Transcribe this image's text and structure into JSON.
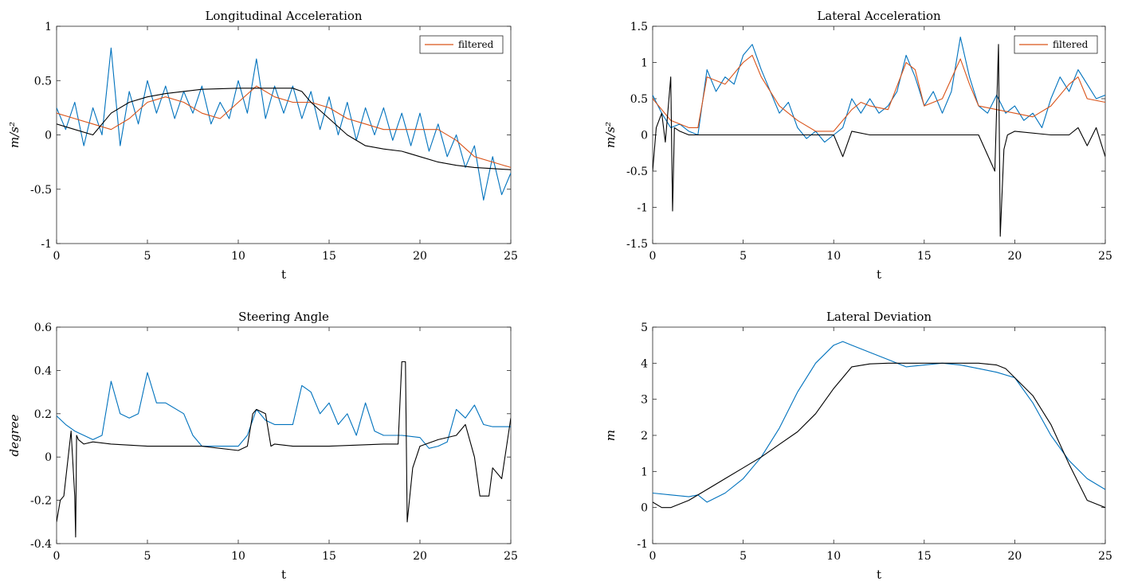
{
  "chart_data": [
    {
      "type": "line",
      "title": "Longitudinal Acceleration",
      "xlabel": "t",
      "ylabel": "m/s²",
      "xlim": [
        0,
        25
      ],
      "ylim": [
        -1,
        1
      ],
      "xticks": [
        0,
        5,
        10,
        15,
        20,
        25
      ],
      "yticks": [
        -1,
        -0.5,
        0,
        0.5,
        1
      ],
      "ytick_labels": [
        "-1",
        "-0.5",
        "0",
        "0.5",
        "1"
      ],
      "legend": {
        "entries": [
          "filtered"
        ],
        "placement": "top-right"
      },
      "series": [
        {
          "color": "#0072BD",
          "x": [
            0,
            0.5,
            1,
            1.5,
            2,
            2.5,
            3,
            3.5,
            4,
            4.5,
            5,
            5.5,
            6,
            6.5,
            7,
            7.5,
            8,
            8.5,
            9,
            9.5,
            10,
            10.5,
            11,
            11.5,
            12,
            12.5,
            13,
            13.5,
            14,
            14.5,
            15,
            15.5,
            16,
            16.5,
            17,
            17.5,
            18,
            18.5,
            19,
            19.5,
            20,
            20.5,
            21,
            21.5,
            22,
            22.5,
            23,
            23.5,
            24,
            24.5,
            25
          ],
          "y": [
            0.25,
            0.05,
            0.3,
            -0.1,
            0.25,
            0.0,
            0.8,
            -0.1,
            0.4,
            0.1,
            0.5,
            0.2,
            0.45,
            0.15,
            0.4,
            0.2,
            0.45,
            0.1,
            0.3,
            0.15,
            0.5,
            0.2,
            0.7,
            0.15,
            0.45,
            0.2,
            0.45,
            0.15,
            0.4,
            0.05,
            0.35,
            0.0,
            0.3,
            -0.05,
            0.25,
            0.0,
            0.25,
            -0.05,
            0.2,
            -0.1,
            0.2,
            -0.15,
            0.1,
            -0.2,
            0.0,
            -0.3,
            -0.1,
            -0.6,
            -0.2,
            -0.55,
            -0.35
          ]
        },
        {
          "name": "filtered",
          "color": "#D95319",
          "x": [
            0,
            1,
            2,
            3,
            4,
            5,
            6,
            7,
            8,
            9,
            10,
            11,
            12,
            13,
            14,
            15,
            16,
            17,
            18,
            19,
            20,
            21,
            22,
            23,
            24,
            25
          ],
          "y": [
            0.2,
            0.15,
            0.1,
            0.05,
            0.15,
            0.3,
            0.35,
            0.3,
            0.2,
            0.15,
            0.3,
            0.45,
            0.35,
            0.3,
            0.3,
            0.25,
            0.15,
            0.1,
            0.05,
            0.05,
            0.05,
            0.05,
            -0.05,
            -0.2,
            -0.25,
            -0.3
          ]
        },
        {
          "color": "#000000",
          "x": [
            0,
            1,
            2,
            3,
            4,
            5,
            6,
            8,
            10,
            12,
            13,
            13.5,
            14,
            15,
            16,
            17,
            18,
            19,
            20,
            21,
            22,
            23,
            24,
            25
          ],
          "y": [
            0.1,
            0.05,
            0.0,
            0.2,
            0.3,
            0.35,
            0.38,
            0.42,
            0.43,
            0.43,
            0.43,
            0.4,
            0.3,
            0.15,
            0.0,
            -0.1,
            -0.13,
            -0.15,
            -0.2,
            -0.25,
            -0.28,
            -0.3,
            -0.31,
            -0.32
          ]
        }
      ]
    },
    {
      "type": "line",
      "title": "Lateral Acceleration",
      "xlabel": "t",
      "ylabel": "m/s²",
      "xlim": [
        0,
        25
      ],
      "ylim": [
        -1.5,
        1.5
      ],
      "xticks": [
        0,
        5,
        10,
        15,
        20,
        25
      ],
      "yticks": [
        -1.5,
        -1,
        -0.5,
        0,
        0.5,
        1,
        1.5
      ],
      "ytick_labels": [
        "-1.5",
        "-1",
        "-0.5",
        "0",
        "0.5",
        "1",
        "1.5"
      ],
      "legend": {
        "entries": [
          "filtered"
        ],
        "placement": "top-right"
      },
      "series": [
        {
          "color": "#0072BD",
          "x": [
            0,
            0.5,
            1,
            1.5,
            2,
            2.5,
            3,
            3.5,
            4,
            4.5,
            5,
            5.5,
            6,
            6.5,
            7,
            7.5,
            8,
            8.5,
            9,
            9.5,
            10,
            10.5,
            11,
            11.5,
            12,
            12.5,
            13,
            13.5,
            14,
            14.5,
            15,
            15.5,
            16,
            16.5,
            17,
            17.5,
            18,
            18.5,
            19,
            19.5,
            20,
            20.5,
            21,
            21.5,
            22,
            22.5,
            23,
            23.5,
            24,
            24.5,
            25
          ],
          "y": [
            0.55,
            0.3,
            0.1,
            0.15,
            0.05,
            0.0,
            0.9,
            0.6,
            0.8,
            0.7,
            1.1,
            1.25,
            0.9,
            0.6,
            0.3,
            0.45,
            0.1,
            -0.05,
            0.05,
            -0.1,
            0.0,
            0.1,
            0.5,
            0.3,
            0.5,
            0.3,
            0.4,
            0.6,
            1.1,
            0.8,
            0.4,
            0.6,
            0.3,
            0.6,
            1.35,
            0.8,
            0.4,
            0.3,
            0.55,
            0.3,
            0.4,
            0.2,
            0.3,
            0.1,
            0.5,
            0.8,
            0.6,
            0.9,
            0.7,
            0.5,
            0.55
          ]
        },
        {
          "name": "filtered",
          "color": "#D95319",
          "x": [
            0,
            1,
            2,
            2.5,
            3,
            4,
            5,
            5.5,
            6,
            7,
            8,
            9,
            10,
            11,
            11.5,
            12,
            13,
            14,
            14.5,
            15,
            16,
            17,
            17.5,
            18,
            19,
            20,
            21,
            22,
            23,
            23.5,
            24,
            25
          ],
          "y": [
            0.5,
            0.2,
            0.1,
            0.1,
            0.8,
            0.7,
            1.0,
            1.1,
            0.8,
            0.4,
            0.2,
            0.05,
            0.05,
            0.35,
            0.45,
            0.4,
            0.35,
            1.0,
            0.9,
            0.4,
            0.5,
            1.05,
            0.7,
            0.4,
            0.35,
            0.3,
            0.25,
            0.4,
            0.7,
            0.8,
            0.5,
            0.45
          ]
        },
        {
          "color": "#000000",
          "x": [
            0,
            0.2,
            0.5,
            0.7,
            1,
            1.1,
            1.2,
            1.5,
            2,
            3,
            5,
            8,
            10,
            10.5,
            11,
            12,
            15,
            18,
            18.9,
            19.1,
            19.2,
            19.4,
            19.6,
            20,
            22,
            23,
            23.5,
            24,
            24.5,
            25
          ],
          "y": [
            -0.5,
            0.1,
            0.3,
            -0.1,
            0.8,
            -1.05,
            0.1,
            0.05,
            0.0,
            0.0,
            0.0,
            0.0,
            0.0,
            -0.3,
            0.05,
            0.0,
            0.0,
            0.0,
            -0.5,
            1.25,
            -1.4,
            -0.2,
            0.0,
            0.05,
            0.0,
            0.0,
            0.1,
            -0.15,
            0.1,
            -0.3
          ]
        }
      ]
    },
    {
      "type": "line",
      "title": "Steering Angle",
      "xlabel": "t",
      "ylabel": "degree",
      "xlim": [
        0,
        25
      ],
      "ylim": [
        -0.4,
        0.6
      ],
      "xticks": [
        0,
        5,
        10,
        15,
        20,
        25
      ],
      "yticks": [
        -0.4,
        -0.2,
        0,
        0.2,
        0.4,
        0.6
      ],
      "ytick_labels": [
        "-0.4",
        "-0.2",
        "0",
        "0.2",
        "0.4",
        "0.6"
      ],
      "series": [
        {
          "color": "#0072BD",
          "x": [
            0,
            0.5,
            1,
            1.5,
            2,
            2.5,
            3,
            3.5,
            4,
            4.5,
            5,
            5.5,
            6,
            7,
            7.5,
            8,
            9,
            10,
            10.5,
            11,
            11.5,
            12,
            13,
            13.5,
            14,
            14.5,
            15,
            15.5,
            16,
            16.5,
            17,
            17.5,
            18,
            19,
            20,
            20.5,
            21,
            21.5,
            22,
            22.5,
            23,
            23.5,
            24,
            24.5,
            25
          ],
          "y": [
            0.19,
            0.15,
            0.12,
            0.1,
            0.08,
            0.1,
            0.35,
            0.2,
            0.18,
            0.2,
            0.39,
            0.25,
            0.25,
            0.2,
            0.1,
            0.05,
            0.05,
            0.05,
            0.1,
            0.22,
            0.17,
            0.15,
            0.15,
            0.33,
            0.3,
            0.2,
            0.25,
            0.15,
            0.2,
            0.1,
            0.25,
            0.12,
            0.1,
            0.1,
            0.09,
            0.04,
            0.05,
            0.07,
            0.22,
            0.18,
            0.24,
            0.15,
            0.14,
            0.14,
            0.14
          ]
        },
        {
          "color": "#000000",
          "x": [
            0,
            0.2,
            0.4,
            0.8,
            1.0,
            1.05,
            1.1,
            1.2,
            1.5,
            2,
            3,
            5,
            8,
            10,
            10.5,
            10.8,
            11,
            11.5,
            11.8,
            12,
            13,
            15,
            18,
            18.8,
            19.0,
            19.2,
            19.3,
            19.6,
            20,
            21,
            22,
            22.5,
            23,
            23.3,
            23.8,
            24,
            24.5,
            25
          ],
          "y": [
            -0.3,
            -0.2,
            -0.18,
            0.12,
            -0.18,
            -0.37,
            0.1,
            0.08,
            0.06,
            0.07,
            0.06,
            0.05,
            0.05,
            0.03,
            0.05,
            0.2,
            0.22,
            0.2,
            0.05,
            0.06,
            0.05,
            0.05,
            0.06,
            0.06,
            0.44,
            0.44,
            -0.3,
            -0.05,
            0.05,
            0.08,
            0.1,
            0.15,
            0.0,
            -0.18,
            -0.18,
            -0.05,
            -0.1,
            0.18
          ]
        }
      ]
    },
    {
      "type": "line",
      "title": "Lateral Deviation",
      "xlabel": "t",
      "ylabel": "m",
      "xlim": [
        0,
        25
      ],
      "ylim": [
        -1,
        5
      ],
      "xticks": [
        0,
        5,
        10,
        15,
        20,
        25
      ],
      "yticks": [
        -1,
        0,
        1,
        2,
        3,
        4,
        5
      ],
      "ytick_labels": [
        "-1",
        "0",
        "1",
        "2",
        "3",
        "4",
        "5"
      ],
      "series": [
        {
          "color": "#0072BD",
          "x": [
            0,
            1,
            2,
            2.5,
            3,
            4,
            5,
            6,
            7,
            8,
            9,
            10,
            10.5,
            11,
            12,
            13,
            14,
            15,
            16,
            17,
            18,
            19,
            20,
            21,
            22,
            23,
            24,
            25
          ],
          "y": [
            0.4,
            0.35,
            0.3,
            0.35,
            0.15,
            0.4,
            0.8,
            1.4,
            2.2,
            3.2,
            4.0,
            4.5,
            4.6,
            4.5,
            4.3,
            4.1,
            3.9,
            3.95,
            4.0,
            3.95,
            3.85,
            3.75,
            3.6,
            2.9,
            2.0,
            1.3,
            0.8,
            0.5
          ]
        },
        {
          "color": "#000000",
          "x": [
            0,
            0.5,
            1,
            2,
            3,
            4,
            5,
            6,
            7,
            8,
            9,
            10,
            11,
            12,
            13,
            14,
            15,
            16,
            17,
            18,
            19,
            19.5,
            20,
            21,
            22,
            23,
            24,
            25
          ],
          "y": [
            0.15,
            0.0,
            0.0,
            0.2,
            0.5,
            0.8,
            1.1,
            1.4,
            1.75,
            2.1,
            2.6,
            3.3,
            3.9,
            3.98,
            4.0,
            4.0,
            4.0,
            4.0,
            4.0,
            4.0,
            3.95,
            3.85,
            3.6,
            3.1,
            2.3,
            1.2,
            0.2,
            0.0
          ]
        }
      ]
    }
  ]
}
